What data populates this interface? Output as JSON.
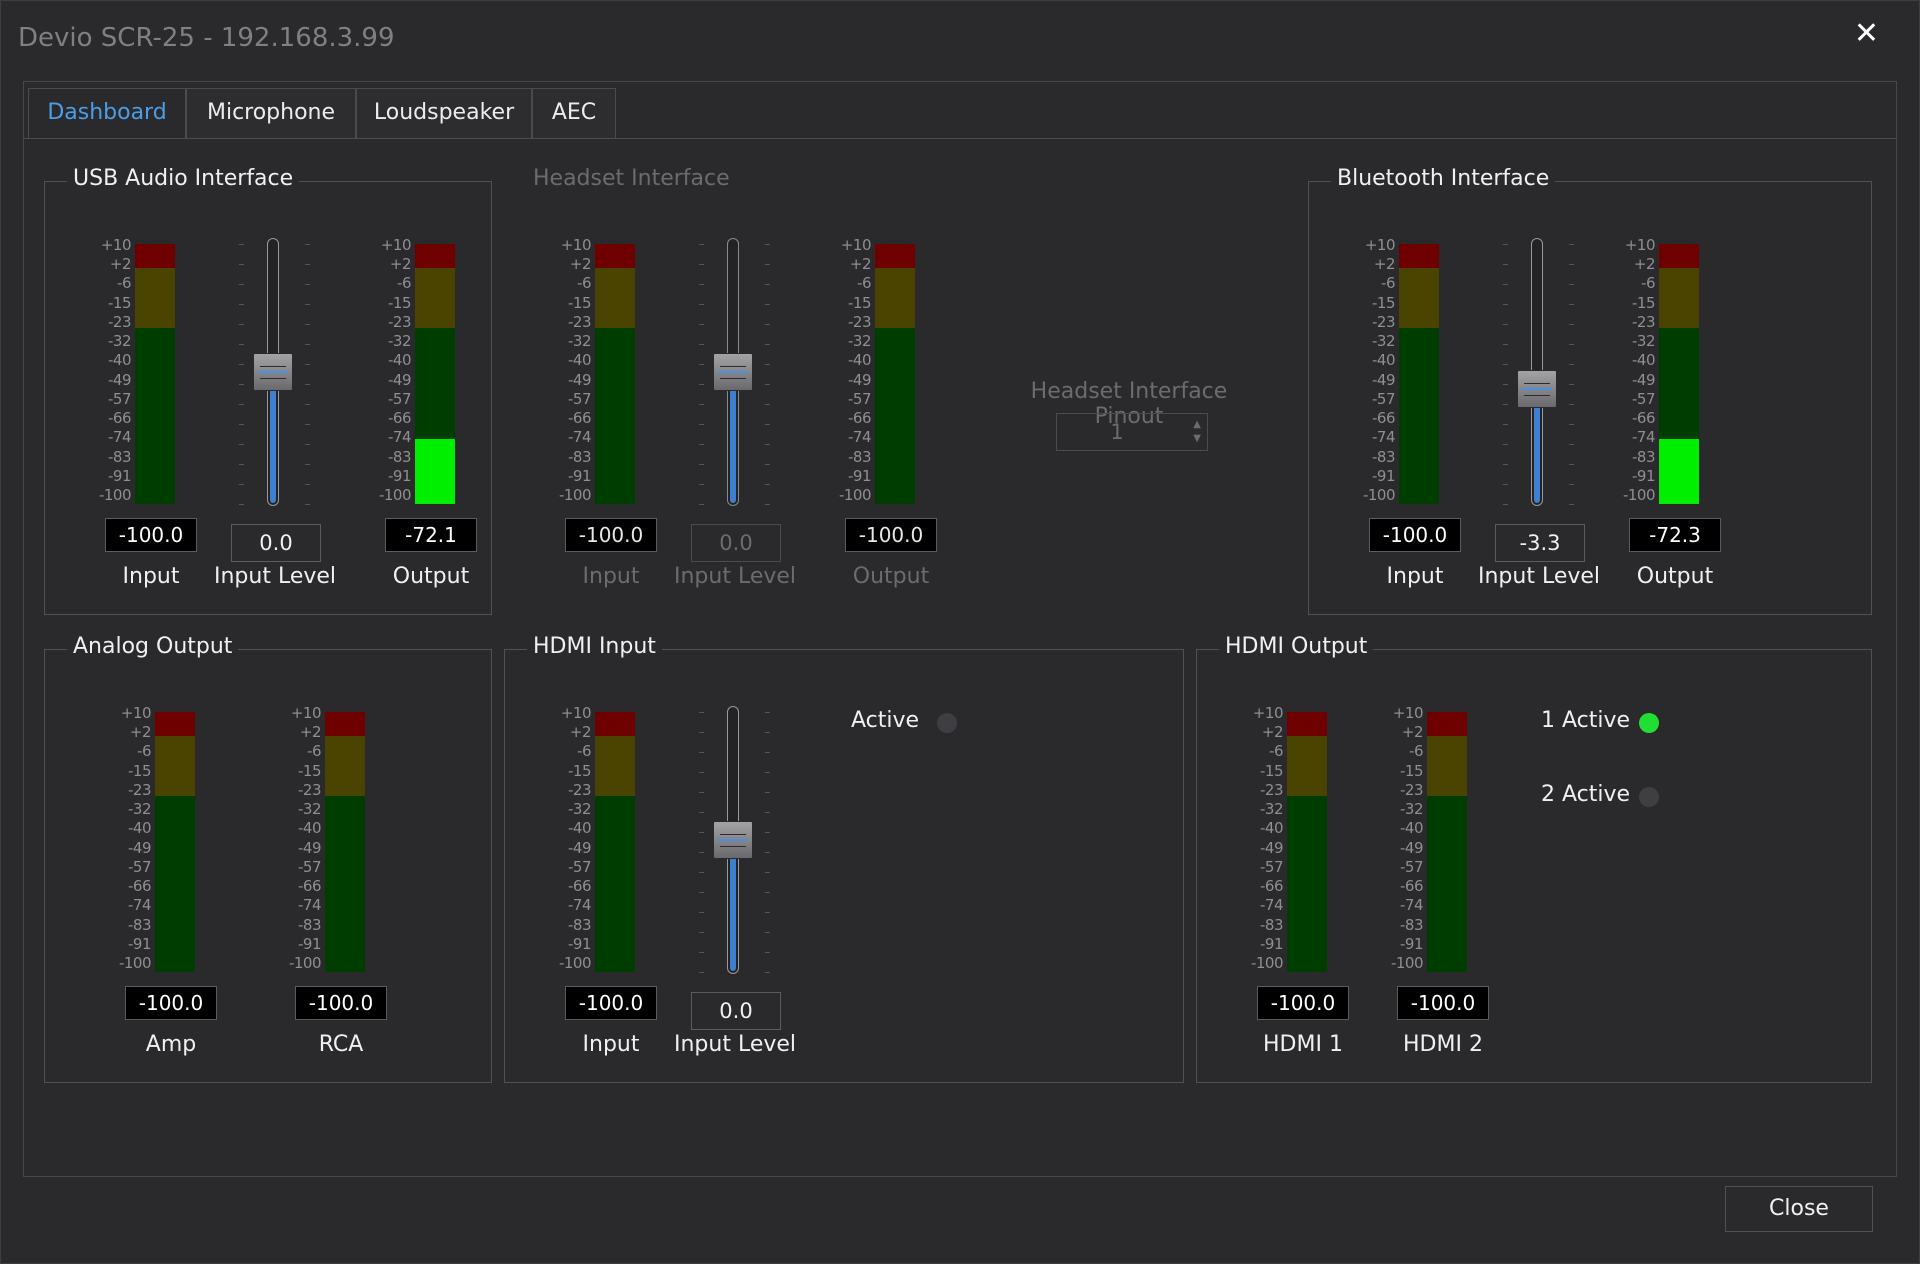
{
  "window": {
    "title": "Devio SCR-25 - 192.168.3.99",
    "close_glyph": "✕"
  },
  "tabs": [
    {
      "label": "Dashboard",
      "active": true
    },
    {
      "label": "Microphone",
      "active": false
    },
    {
      "label": "Loudspeaker",
      "active": false
    },
    {
      "label": "AEC",
      "active": false
    }
  ],
  "meter_scale": [
    "+10",
    "+2",
    "-6",
    "-15",
    "-23",
    "-32",
    "-40",
    "-49",
    "-57",
    "-66",
    "-74",
    "-83",
    "-91",
    "-100"
  ],
  "colors": {
    "tab_active": "#4a9ee8",
    "meter_red": "#6f0000",
    "meter_yellow": "#4a4400",
    "meter_green": "#003d00",
    "meter_active": "#00ee00",
    "fader_fill": "#3e7fd0",
    "led_on": "#22dd33"
  },
  "groups": {
    "usb": {
      "title": "USB Audio Interface",
      "input": {
        "value": "-100.0",
        "label": "Input",
        "level_fraction": 0.0
      },
      "fader": {
        "value": "0.0",
        "label": "Input Level",
        "position_fraction": 0.5
      },
      "output": {
        "value": "-72.1",
        "label": "Output",
        "level_fraction": 0.25
      }
    },
    "headset": {
      "title": "Headset Interface",
      "input": {
        "value": "-100.0",
        "label": "Input",
        "level_fraction": 0.0
      },
      "fader": {
        "value": "0.0",
        "label": "Input Level",
        "position_fraction": 0.5
      },
      "output": {
        "value": "-100.0",
        "label": "Output",
        "level_fraction": 0.0
      },
      "pinout": {
        "label": "Headset Interface Pinout",
        "value": "1"
      }
    },
    "bluetooth": {
      "title": "Bluetooth Interface",
      "input": {
        "value": "-100.0",
        "label": "Input",
        "level_fraction": 0.0
      },
      "fader": {
        "value": "-3.3",
        "label": "Input Level",
        "position_fraction": 0.425
      },
      "output": {
        "value": "-72.3",
        "label": "Output",
        "level_fraction": 0.25
      }
    },
    "analog": {
      "title": "Analog Output",
      "amp": {
        "value": "-100.0",
        "label": "Amp",
        "level_fraction": 0.0
      },
      "rca": {
        "value": "-100.0",
        "label": "RCA",
        "level_fraction": 0.0
      }
    },
    "hdmi_in": {
      "title": "HDMI Input",
      "input": {
        "value": "-100.0",
        "label": "Input",
        "level_fraction": 0.0
      },
      "fader": {
        "value": "0.0",
        "label": "Input Level",
        "position_fraction": 0.5
      },
      "active": {
        "label": "Active",
        "on": false
      }
    },
    "hdmi_out": {
      "title": "HDMI Output",
      "hdmi1": {
        "value": "-100.0",
        "label": "HDMI 1",
        "level_fraction": 0.0
      },
      "hdmi2": {
        "value": "-100.0",
        "label": "HDMI 2",
        "level_fraction": 0.0
      },
      "active1": {
        "label": "1 Active",
        "on": true
      },
      "active2": {
        "label": "2 Active",
        "on": false
      }
    }
  },
  "footer": {
    "close_label": "Close"
  }
}
